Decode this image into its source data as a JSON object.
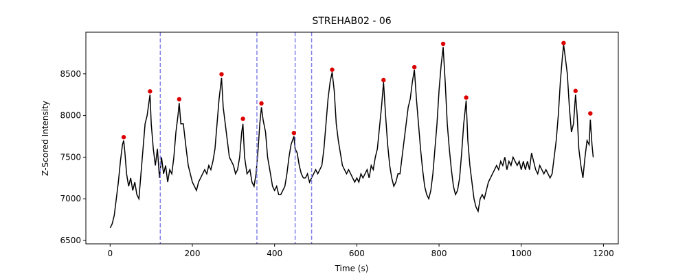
{
  "chart_data": {
    "type": "line",
    "title": "STREHAB02 - 06",
    "xlabel": "Time (s)",
    "ylabel": "Z-Scored Intensity",
    "xlim": [
      -59,
      1236
    ],
    "ylim": [
      6459,
      9000
    ],
    "xticks": [
      0,
      200,
      400,
      600,
      800,
      1000,
      1200
    ],
    "yticks": [
      6500,
      7000,
      7500,
      8000,
      8500
    ],
    "series": [
      {
        "color": "#000000",
        "kind": "line",
        "x": [
          0,
          5,
          10,
          15,
          20,
          25,
          30,
          33,
          36,
          40,
          45,
          50,
          55,
          60,
          65,
          70,
          75,
          80,
          85,
          90,
          97,
          100,
          105,
          110,
          115,
          120,
          125,
          130,
          135,
          140,
          145,
          150,
          155,
          160,
          165,
          168,
          172,
          178,
          185,
          190,
          195,
          200,
          205,
          210,
          215,
          220,
          225,
          230,
          235,
          240,
          245,
          250,
          255,
          260,
          265,
          271,
          275,
          280,
          285,
          290,
          295,
          300,
          305,
          310,
          315,
          320,
          323,
          327,
          333,
          340,
          345,
          350,
          355,
          360,
          364,
          368,
          372,
          378,
          383,
          390,
          395,
          400,
          405,
          410,
          415,
          420,
          425,
          430,
          435,
          440,
          447,
          450,
          455,
          460,
          465,
          470,
          475,
          480,
          485,
          490,
          495,
          500,
          505,
          510,
          515,
          520,
          525,
          530,
          535,
          540,
          545,
          550,
          555,
          560,
          565,
          570,
          575,
          580,
          585,
          590,
          595,
          600,
          605,
          610,
          615,
          620,
          625,
          630,
          635,
          640,
          645,
          650,
          655,
          660,
          665,
          670,
          675,
          680,
          685,
          690,
          695,
          700,
          705,
          710,
          715,
          720,
          725,
          730,
          735,
          740,
          745,
          750,
          755,
          760,
          765,
          770,
          775,
          780,
          785,
          790,
          795,
          800,
          805,
          810,
          815,
          820,
          825,
          830,
          835,
          840,
          845,
          850,
          855,
          860,
          866,
          870,
          875,
          880,
          885,
          890,
          895,
          900,
          905,
          910,
          915,
          920,
          925,
          930,
          935,
          940,
          945,
          950,
          955,
          960,
          965,
          970,
          975,
          980,
          985,
          990,
          995,
          1000,
          1005,
          1010,
          1015,
          1020,
          1025,
          1030,
          1035,
          1040,
          1045,
          1050,
          1055,
          1060,
          1065,
          1070,
          1075,
          1080,
          1085,
          1090,
          1095,
          1100,
          1103,
          1107,
          1112,
          1117,
          1122,
          1127,
          1132,
          1136,
          1140,
          1145,
          1150,
          1155,
          1160,
          1165,
          1168,
          1172,
          1175
        ],
        "values": [
          6650,
          6700,
          6800,
          7000,
          7200,
          7450,
          7650,
          7700,
          7550,
          7300,
          7150,
          7250,
          7100,
          7200,
          7050,
          7000,
          7300,
          7600,
          7900,
          8000,
          8250,
          7900,
          7600,
          7400,
          7600,
          7250,
          7500,
          7300,
          7400,
          7200,
          7350,
          7300,
          7500,
          7800,
          8000,
          8150,
          7900,
          7900,
          7600,
          7400,
          7300,
          7200,
          7150,
          7100,
          7200,
          7250,
          7300,
          7350,
          7300,
          7400,
          7350,
          7450,
          7600,
          7900,
          8200,
          8450,
          8100,
          7900,
          7700,
          7500,
          7450,
          7400,
          7300,
          7350,
          7500,
          7800,
          7900,
          7500,
          7300,
          7350,
          7200,
          7150,
          7300,
          7600,
          7900,
          8100,
          7950,
          7800,
          7500,
          7300,
          7150,
          7100,
          7150,
          7050,
          7050,
          7100,
          7150,
          7300,
          7500,
          7650,
          7750,
          7600,
          7550,
          7400,
          7300,
          7250,
          7250,
          7300,
          7200,
          7250,
          7300,
          7350,
          7300,
          7350,
          7400,
          7600,
          7900,
          8200,
          8400,
          8520,
          8300,
          7900,
          7700,
          7550,
          7400,
          7350,
          7300,
          7350,
          7300,
          7250,
          7200,
          7250,
          7200,
          7300,
          7250,
          7300,
          7350,
          7250,
          7400,
          7350,
          7500,
          7600,
          7850,
          8100,
          8400,
          8000,
          7650,
          7400,
          7250,
          7150,
          7200,
          7300,
          7300,
          7500,
          7700,
          7900,
          8100,
          8200,
          8400,
          8550,
          8200,
          7900,
          7600,
          7350,
          7150,
          7050,
          7000,
          7100,
          7300,
          7600,
          7900,
          8300,
          8600,
          8820,
          8400,
          7900,
          7600,
          7350,
          7150,
          7050,
          7100,
          7250,
          7550,
          7900,
          8180,
          7700,
          7400,
          7200,
          7000,
          6900,
          6850,
          7000,
          7050,
          7000,
          7100,
          7200,
          7250,
          7300,
          7350,
          7400,
          7350,
          7450,
          7400,
          7500,
          7350,
          7450,
          7400,
          7500,
          7450,
          7400,
          7450,
          7350,
          7450,
          7350,
          7450,
          7350,
          7550,
          7450,
          7350,
          7300,
          7400,
          7350,
          7300,
          7350,
          7300,
          7250,
          7300,
          7500,
          7700,
          8000,
          8400,
          8700,
          8850,
          8700,
          8500,
          8100,
          7800,
          7900,
          8250,
          8000,
          7600,
          7400,
          7250,
          7500,
          7700,
          7650,
          7950,
          7650,
          7500
        ]
      },
      {
        "color": "#dd0000",
        "kind": "scatter",
        "x": [
          33,
          97,
          168,
          271,
          323,
          368,
          447,
          540,
          665,
          740,
          810,
          866,
          1103,
          1132,
          1168
        ],
        "values": [
          7740,
          8290,
          8195,
          8495,
          7960,
          8145,
          7790,
          8550,
          8425,
          8580,
          8860,
          8215,
          8870,
          8295,
          8025
        ]
      }
    ],
    "vlines": {
      "color": "#8080e8",
      "values": [
        122,
        357,
        450,
        490
      ]
    }
  }
}
